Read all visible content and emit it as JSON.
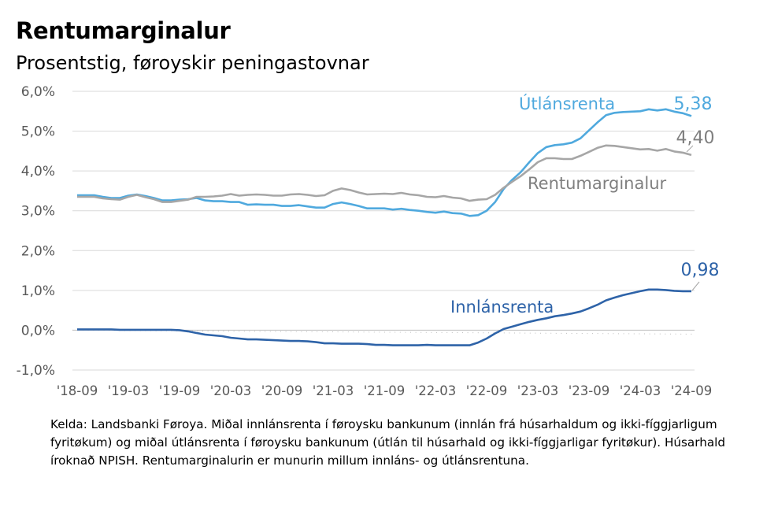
{
  "title": "Rentumarginalur",
  "subtitle": "Prosentstig, føroyskir peningastovnar",
  "source": "Kelda: Landsbanki Føroya. Miðal innlánsrenta í føroysku bankunum (innlán frá húsarhaldum og ikki-fíggjarligum fyritøkum) og miðal útlánsrenta í føroysku bankunum (útlán til húsarhald og ikki-fíggjarligar fyritøkur). Húsarhald íroknað NPISH. Rentumarginalurin er munurin millum innláns- og útlánsrentuna.",
  "chart_data": {
    "type": "line",
    "title": "Rentumarginalur",
    "subtitle": "Prosentstig, føroyskir peningastovnar",
    "ylim": [
      -1.0,
      6.0
    ],
    "y_ticks": [
      "6,0%",
      "5,0%",
      "4,0%",
      "3,0%",
      "2,0%",
      "1,0%",
      "0,0%",
      "-1,0%"
    ],
    "x_ticks": [
      "'18-09",
      "'19-03",
      "'19-09",
      "'20-03",
      "'20-09",
      "'21-03",
      "'21-09",
      "'22-03",
      "'22-09",
      "'23-03",
      "'23-09",
      "'24-03",
      "'24-09"
    ],
    "grid": true,
    "x_start": "2018-09",
    "x_end": "2024-09",
    "series": [
      {
        "name": "Útlánsrenta",
        "color": "#4fa9de",
        "end_label": "5,38",
        "values": [
          3.39,
          3.39,
          3.39,
          3.35,
          3.32,
          3.32,
          3.38,
          3.41,
          3.37,
          3.32,
          3.26,
          3.26,
          3.28,
          3.29,
          3.32,
          3.26,
          3.24,
          3.24,
          3.22,
          3.22,
          3.15,
          3.16,
          3.15,
          3.15,
          3.12,
          3.12,
          3.14,
          3.11,
          3.08,
          3.08,
          3.17,
          3.21,
          3.17,
          3.12,
          3.06,
          3.06,
          3.06,
          3.03,
          3.05,
          3.02,
          3.0,
          2.97,
          2.95,
          2.98,
          2.94,
          2.93,
          2.87,
          2.89,
          3.0,
          3.22,
          3.55,
          3.78,
          3.97,
          4.22,
          4.45,
          4.6,
          4.65,
          4.67,
          4.71,
          4.82,
          5.02,
          5.22,
          5.4,
          5.46,
          5.48,
          5.49,
          5.5,
          5.55,
          5.52,
          5.55,
          5.49,
          5.45,
          5.38
        ]
      },
      {
        "name": "Rentumarginalur",
        "color": "#a6a6a6",
        "end_label": "4,40",
        "values": [
          3.35,
          3.35,
          3.35,
          3.31,
          3.29,
          3.28,
          3.35,
          3.4,
          3.34,
          3.29,
          3.22,
          3.22,
          3.25,
          3.28,
          3.35,
          3.35,
          3.36,
          3.38,
          3.42,
          3.38,
          3.4,
          3.41,
          3.4,
          3.38,
          3.38,
          3.41,
          3.42,
          3.4,
          3.37,
          3.39,
          3.5,
          3.56,
          3.52,
          3.46,
          3.41,
          3.42,
          3.43,
          3.42,
          3.45,
          3.41,
          3.39,
          3.35,
          3.34,
          3.37,
          3.33,
          3.31,
          3.25,
          3.28,
          3.29,
          3.4,
          3.58,
          3.73,
          3.87,
          4.04,
          4.22,
          4.32,
          4.32,
          4.3,
          4.3,
          4.38,
          4.48,
          4.58,
          4.64,
          4.63,
          4.6,
          4.57,
          4.54,
          4.55,
          4.51,
          4.55,
          4.49,
          4.46,
          4.4
        ]
      },
      {
        "name": "Innlánsrenta",
        "color": "#2e63a8",
        "end_label": "0,98",
        "values": [
          0.02,
          0.02,
          0.02,
          0.02,
          0.02,
          0.01,
          0.01,
          0.01,
          0.01,
          0.01,
          0.01,
          0.01,
          0.0,
          -0.03,
          -0.07,
          -0.11,
          -0.13,
          -0.15,
          -0.19,
          -0.21,
          -0.23,
          -0.23,
          -0.24,
          -0.25,
          -0.26,
          -0.27,
          -0.27,
          -0.28,
          -0.3,
          -0.33,
          -0.33,
          -0.34,
          -0.34,
          -0.34,
          -0.35,
          -0.37,
          -0.37,
          -0.38,
          -0.38,
          -0.38,
          -0.38,
          -0.37,
          -0.38,
          -0.38,
          -0.38,
          -0.38,
          -0.38,
          -0.31,
          -0.21,
          -0.08,
          0.03,
          0.09,
          0.15,
          0.21,
          0.26,
          0.3,
          0.35,
          0.38,
          0.42,
          0.47,
          0.55,
          0.64,
          0.75,
          0.82,
          0.88,
          0.93,
          0.98,
          1.02,
          1.02,
          1.01,
          0.99,
          0.98,
          0.98
        ]
      }
    ],
    "annotations": [
      {
        "text": "Útlánsrenta",
        "series": "Útlánsrenta"
      },
      {
        "text": "Rentumarginalur",
        "series": "Rentumarginalur"
      },
      {
        "text": "Innlánsrenta",
        "series": "Innlánsrenta"
      }
    ]
  }
}
